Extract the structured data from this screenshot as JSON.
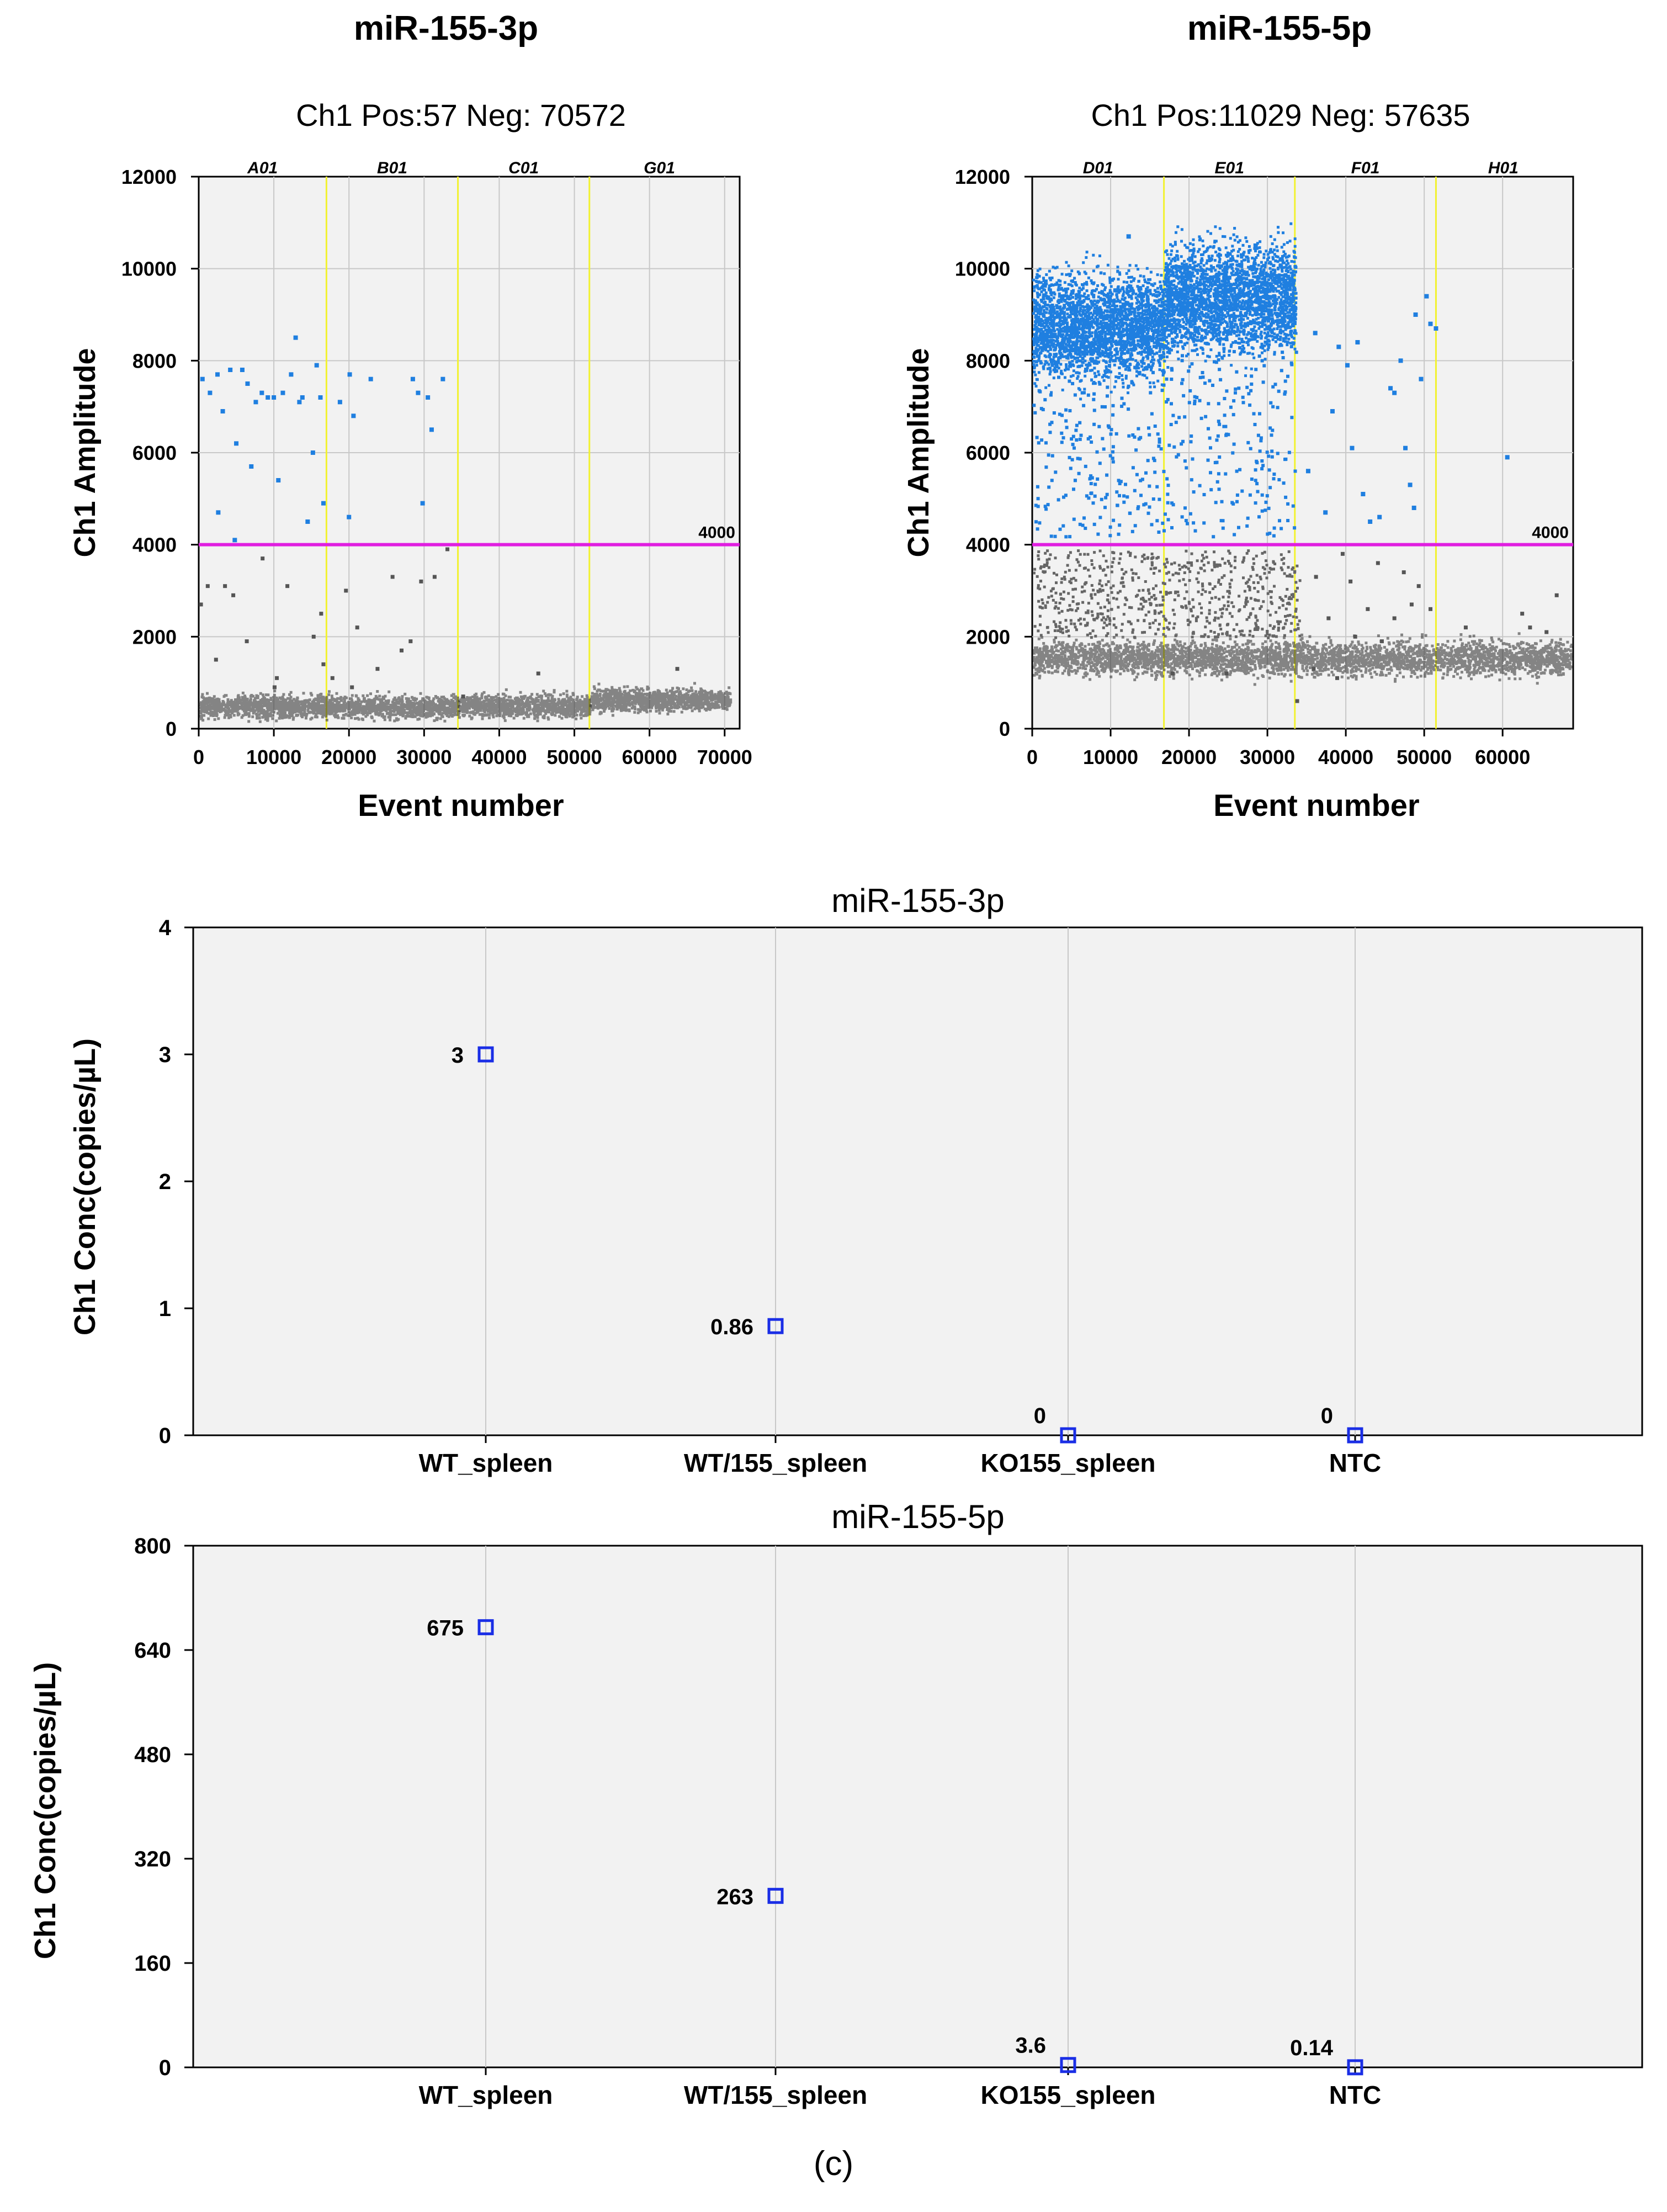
{
  "panel_caption": "(c)",
  "chart_data": [
    {
      "type": "scatter",
      "id": "amp3p",
      "title": "miR-155-3p",
      "subtitle": "Ch1  Pos:57   Neg: 70572",
      "xlabel": "Event number",
      "ylabel": "Ch1 Amplitude",
      "xlim": [
        0,
        72000
      ],
      "ylim": [
        0,
        12000
      ],
      "xticks": [
        0,
        10000,
        20000,
        30000,
        40000,
        50000,
        60000,
        70000
      ],
      "yticks": [
        0,
        2000,
        4000,
        6000,
        8000,
        10000,
        12000
      ],
      "threshold": 4000,
      "threshold_label": "4000",
      "grid": true,
      "wells": [
        {
          "name": "A01",
          "start": 0,
          "end": 17000
        },
        {
          "name": "B01",
          "start": 17000,
          "end": 34500
        },
        {
          "name": "C01",
          "start": 34500,
          "end": 52000
        },
        {
          "name": "G01",
          "start": 52000,
          "end": 70629
        }
      ],
      "negative_bands": [
        {
          "start": 0,
          "end": 34500,
          "level": 500,
          "spread": 120
        },
        {
          "start": 34500,
          "end": 52000,
          "level": 520,
          "spread": 120
        },
        {
          "start": 52000,
          "end": 70629,
          "level": 650,
          "spread": 120
        }
      ],
      "positive_points": [
        [
          500,
          7600
        ],
        [
          1500,
          7300
        ],
        [
          2500,
          7700
        ],
        [
          3200,
          6900
        ],
        [
          4200,
          7800
        ],
        [
          5000,
          6200
        ],
        [
          5800,
          7800
        ],
        [
          6500,
          7500
        ],
        [
          7000,
          5700
        ],
        [
          7600,
          7100
        ],
        [
          8400,
          7300
        ],
        [
          9200,
          7200
        ],
        [
          10000,
          7200
        ],
        [
          10600,
          5400
        ],
        [
          11200,
          7300
        ],
        [
          12300,
          7700
        ],
        [
          12900,
          8500
        ],
        [
          13400,
          7100
        ],
        [
          13800,
          7200
        ],
        [
          14500,
          4500
        ],
        [
          15200,
          6000
        ],
        [
          15700,
          7900
        ],
        [
          16200,
          7200
        ],
        [
          16600,
          4900
        ],
        [
          18800,
          7100
        ],
        [
          20100,
          7700
        ],
        [
          20600,
          6800
        ],
        [
          22900,
          7600
        ],
        [
          28500,
          7600
        ],
        [
          29200,
          7300
        ],
        [
          29800,
          4900
        ],
        [
          30500,
          7200
        ],
        [
          31000,
          6500
        ],
        [
          32500,
          7600
        ],
        [
          2600,
          4700
        ],
        [
          4800,
          4100
        ],
        [
          20000,
          4600
        ]
      ],
      "rain_points": [
        [
          300,
          2700
        ],
        [
          1200,
          3100
        ],
        [
          2300,
          1500
        ],
        [
          3500,
          3100
        ],
        [
          4600,
          2900
        ],
        [
          6400,
          1900
        ],
        [
          8500,
          3700
        ],
        [
          10400,
          1100
        ],
        [
          11800,
          3100
        ],
        [
          15300,
          2000
        ],
        [
          16300,
          2500
        ],
        [
          17800,
          1100
        ],
        [
          19600,
          3000
        ],
        [
          21100,
          2200
        ],
        [
          23800,
          1300
        ],
        [
          25800,
          3300
        ],
        [
          27000,
          1700
        ],
        [
          28200,
          1900
        ],
        [
          29600,
          3200
        ],
        [
          31400,
          3300
        ],
        [
          33100,
          3900
        ],
        [
          35200,
          700
        ],
        [
          45200,
          1200
        ],
        [
          63700,
          1300
        ],
        [
          16600,
          1400
        ],
        [
          10100,
          900
        ],
        [
          20400,
          900
        ]
      ],
      "rain_color": "#555555",
      "positive_color": "#1f7fe0"
    },
    {
      "type": "scatter",
      "id": "amp5p",
      "title": "miR-155-5p",
      "subtitle": "Ch1  Pos:11029   Neg: 57635",
      "xlabel": "Event number",
      "ylabel": "Ch1 Amplitude",
      "xlim": [
        0,
        69000
      ],
      "ylim": [
        0,
        12000
      ],
      "xticks": [
        0,
        10000,
        20000,
        30000,
        40000,
        50000,
        60000
      ],
      "yticks": [
        0,
        2000,
        4000,
        6000,
        8000,
        10000,
        12000
      ],
      "threshold": 4000,
      "threshold_label": "4000",
      "grid": true,
      "wells": [
        {
          "name": "D01",
          "start": 0,
          "end": 16800
        },
        {
          "name": "E01",
          "start": 16800,
          "end": 33500
        },
        {
          "name": "F01",
          "start": 33500,
          "end": 51500
        },
        {
          "name": "H01",
          "start": 51500,
          "end": 68664
        }
      ],
      "positive_bands": [
        {
          "start": 0,
          "end": 16800,
          "level": 8800,
          "spread": 560
        },
        {
          "start": 16800,
          "end": 33500,
          "level": 9400,
          "spread": 560
        }
      ],
      "negative_bands": [
        {
          "start": 0,
          "end": 68664,
          "level": 1560,
          "spread": 180
        }
      ],
      "positive_points": [
        [
          36100,
          8600
        ],
        [
          38300,
          6900
        ],
        [
          39100,
          8300
        ],
        [
          40200,
          7900
        ],
        [
          40800,
          6100
        ],
        [
          41500,
          8400
        ],
        [
          42200,
          5100
        ],
        [
          44300,
          4600
        ],
        [
          45700,
          7400
        ],
        [
          47000,
          8000
        ],
        [
          47600,
          6100
        ],
        [
          48200,
          5300
        ],
        [
          48900,
          9000
        ],
        [
          49600,
          7600
        ],
        [
          50300,
          9400
        ],
        [
          50800,
          8800
        ],
        [
          51500,
          8700
        ],
        [
          60600,
          5900
        ],
        [
          43100,
          4500
        ],
        [
          37400,
          4700
        ],
        [
          35200,
          5600
        ],
        [
          48700,
          4800
        ],
        [
          46200,
          7300
        ],
        [
          12300,
          10700
        ],
        [
          22700,
          10200
        ],
        [
          28500,
          10500
        ],
        [
          31800,
          10200
        ]
      ],
      "rain_points": [
        [
          36200,
          3300
        ],
        [
          37800,
          2400
        ],
        [
          39600,
          3800
        ],
        [
          41200,
          2000
        ],
        [
          42800,
          2600
        ],
        [
          44600,
          1900
        ],
        [
          46200,
          2400
        ],
        [
          47400,
          3400
        ],
        [
          48400,
          2700
        ],
        [
          49300,
          3100
        ],
        [
          50800,
          2600
        ],
        [
          55300,
          2200
        ],
        [
          62500,
          2500
        ],
        [
          63500,
          2200
        ],
        [
          65600,
          2100
        ],
        [
          66900,
          2900
        ],
        [
          38900,
          1100
        ],
        [
          44100,
          3600
        ],
        [
          35900,
          1300
        ],
        [
          40600,
          3200
        ],
        [
          33800,
          600
        ],
        [
          17900,
          1200
        ],
        [
          24800,
          1200
        ]
      ],
      "rain_color": "#555555",
      "positive_color": "#1f7fe0"
    },
    {
      "type": "scatter",
      "id": "conc3p",
      "title": "miR-155-3p",
      "xlabel": "",
      "ylabel": "Ch1 Conc(copies/µL)",
      "categories": [
        "WT_spleen",
        "WT/155_spleen",
        "KO155_spleen",
        "NTC"
      ],
      "values": [
        3,
        0.86,
        0,
        0
      ],
      "labels": [
        "3",
        "0.86",
        "0",
        "0"
      ],
      "ylim": [
        0,
        4
      ],
      "yticks": [
        0,
        1,
        2,
        3,
        4
      ],
      "marker": "hollow-square",
      "marker_color": "#1a2ee6",
      "grid": true
    },
    {
      "type": "scatter",
      "id": "conc5p",
      "title": "miR-155-5p",
      "xlabel": "",
      "ylabel": "Ch1 Conc(copies/µL)",
      "categories": [
        "WT_spleen",
        "WT/155_spleen",
        "KO155_spleen",
        "NTC"
      ],
      "values": [
        675,
        263,
        3.6,
        0.14
      ],
      "labels": [
        "675",
        "263",
        "3.6",
        "0.14"
      ],
      "ylim": [
        0,
        800
      ],
      "yticks": [
        0,
        160,
        320,
        480,
        640,
        800
      ],
      "marker": "hollow-square",
      "marker_color": "#1a2ee6",
      "grid": true
    }
  ]
}
